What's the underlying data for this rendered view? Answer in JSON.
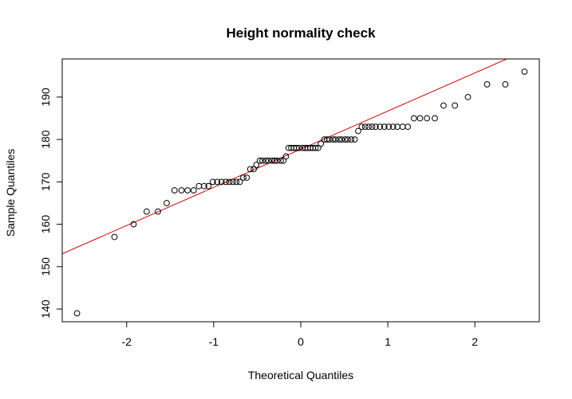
{
  "chart_data": {
    "type": "scatter",
    "title": "Height normality check",
    "xlabel": "Theoretical Quantiles",
    "ylabel": "Sample Quantiles",
    "xlim": [
      -2.74,
      2.74
    ],
    "ylim": [
      137,
      199
    ],
    "x_ticks": [
      -2,
      -1,
      0,
      1,
      2
    ],
    "x_tick_labels": [
      "-2",
      "-1",
      "0",
      "1",
      "2"
    ],
    "y_ticks": [
      140,
      150,
      160,
      170,
      180,
      190
    ],
    "y_tick_labels": [
      "140",
      "150",
      "160",
      "170",
      "180",
      "190"
    ],
    "grid": false,
    "legend": "none",
    "point_style": "open-circle",
    "point_color": "#000000",
    "line_color": "#cc0000",
    "reference_line": {
      "intercept": 177.7,
      "slope": 9.0
    },
    "points": [
      [
        -2.57,
        139
      ],
      [
        -2.14,
        157
      ],
      [
        -1.92,
        160
      ],
      [
        -1.77,
        163
      ],
      [
        -1.64,
        163
      ],
      [
        -1.54,
        165
      ],
      [
        -1.45,
        168
      ],
      [
        -1.37,
        168
      ],
      [
        -1.3,
        168
      ],
      [
        -1.23,
        168
      ],
      [
        -1.17,
        169
      ],
      [
        -1.11,
        169
      ],
      [
        -1.06,
        169
      ],
      [
        -1.01,
        170
      ],
      [
        -0.96,
        170
      ],
      [
        -0.91,
        170
      ],
      [
        -0.86,
        170
      ],
      [
        -0.82,
        170
      ],
      [
        -0.78,
        170
      ],
      [
        -0.74,
        170
      ],
      [
        -0.7,
        170
      ],
      [
        -0.66,
        171
      ],
      [
        -0.62,
        171
      ],
      [
        -0.58,
        173
      ],
      [
        -0.54,
        173
      ],
      [
        -0.51,
        174
      ],
      [
        -0.47,
        175
      ],
      [
        -0.44,
        175
      ],
      [
        -0.4,
        175
      ],
      [
        -0.37,
        175
      ],
      [
        -0.33,
        175
      ],
      [
        -0.3,
        175
      ],
      [
        -0.27,
        175
      ],
      [
        -0.23,
        175
      ],
      [
        -0.2,
        175
      ],
      [
        -0.17,
        176
      ],
      [
        -0.14,
        178
      ],
      [
        -0.11,
        178
      ],
      [
        -0.08,
        178
      ],
      [
        -0.05,
        178
      ],
      [
        -0.02,
        178
      ],
      [
        0.02,
        178
      ],
      [
        0.05,
        178
      ],
      [
        0.08,
        178
      ],
      [
        0.11,
        178
      ],
      [
        0.14,
        178
      ],
      [
        0.17,
        178
      ],
      [
        0.2,
        178
      ],
      [
        0.23,
        179
      ],
      [
        0.27,
        180
      ],
      [
        0.3,
        180
      ],
      [
        0.33,
        180
      ],
      [
        0.37,
        180
      ],
      [
        0.4,
        180
      ],
      [
        0.44,
        180
      ],
      [
        0.47,
        180
      ],
      [
        0.51,
        180
      ],
      [
        0.54,
        180
      ],
      [
        0.58,
        180
      ],
      [
        0.62,
        180
      ],
      [
        0.66,
        182
      ],
      [
        0.7,
        183
      ],
      [
        0.74,
        183
      ],
      [
        0.78,
        183
      ],
      [
        0.82,
        183
      ],
      [
        0.86,
        183
      ],
      [
        0.91,
        183
      ],
      [
        0.96,
        183
      ],
      [
        1.01,
        183
      ],
      [
        1.06,
        183
      ],
      [
        1.11,
        183
      ],
      [
        1.17,
        183
      ],
      [
        1.23,
        183
      ],
      [
        1.3,
        185
      ],
      [
        1.37,
        185
      ],
      [
        1.45,
        185
      ],
      [
        1.54,
        185
      ],
      [
        1.64,
        188
      ],
      [
        1.77,
        188
      ],
      [
        1.92,
        190
      ],
      [
        2.14,
        193
      ],
      [
        2.35,
        193
      ],
      [
        2.57,
        196
      ]
    ]
  }
}
